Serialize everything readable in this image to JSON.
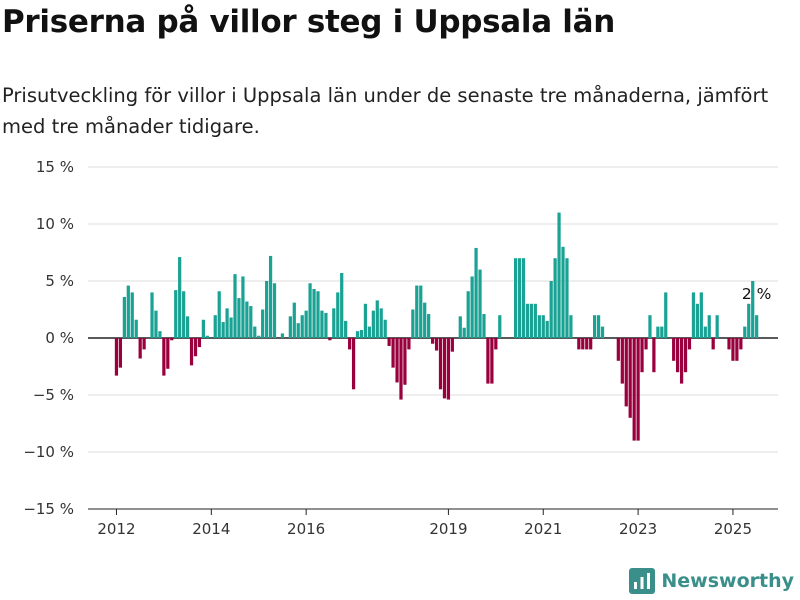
{
  "header": {
    "title": "Priserna på villor steg i Uppsala län",
    "subtitle": "Prisutveckling för villor i Uppsala län under de senaste tre månaderna, jämfört med tre månader tidigare."
  },
  "branding": {
    "name": "Newsworthy"
  },
  "colors": {
    "positive": "#1aa394",
    "negative": "#99003d",
    "logo": "#3a8f8a",
    "grid": "#dddddd"
  },
  "chart_data": {
    "type": "bar",
    "ylim": [
      -15,
      15
    ],
    "yticks": [
      15,
      10,
      5,
      0,
      -5,
      -10,
      -15
    ],
    "ytick_labels": [
      "15 %",
      "10 %",
      "5 %",
      "0 %",
      "−5 %",
      "−10 %",
      "−15 %"
    ],
    "xlim": [
      2011.4,
      2025.95
    ],
    "xticks": [
      2012,
      2014,
      2016,
      2019,
      2021,
      2023,
      2025
    ],
    "xtick_labels": [
      "2012",
      "2014",
      "2016",
      "2019",
      "2021",
      "2023",
      "2025"
    ],
    "grid": true,
    "x": [
      2012.0,
      2012.083,
      2012.167,
      2012.25,
      2012.333,
      2012.417,
      2012.5,
      2012.583,
      2012.667,
      2012.75,
      2012.833,
      2012.917,
      2013.0,
      2013.083,
      2013.167,
      2013.25,
      2013.333,
      2013.417,
      2013.5,
      2013.583,
      2013.667,
      2013.75,
      2013.833,
      2013.917,
      2014.0,
      2014.083,
      2014.167,
      2014.25,
      2014.333,
      2014.417,
      2014.5,
      2014.583,
      2014.667,
      2014.75,
      2014.833,
      2014.917,
      2015.0,
      2015.083,
      2015.167,
      2015.25,
      2015.333,
      2015.417,
      2015.5,
      2015.583,
      2015.667,
      2015.75,
      2015.833,
      2015.917,
      2016.0,
      2016.083,
      2016.167,
      2016.25,
      2016.333,
      2016.417,
      2016.5,
      2016.583,
      2016.667,
      2016.75,
      2016.833,
      2016.917,
      2017.0,
      2017.083,
      2017.167,
      2017.25,
      2017.333,
      2017.417,
      2017.5,
      2017.583,
      2017.667,
      2017.75,
      2017.833,
      2017.917,
      2018.0,
      2018.083,
      2018.167,
      2018.25,
      2018.333,
      2018.417,
      2018.5,
      2018.583,
      2018.667,
      2018.75,
      2018.833,
      2018.917,
      2019.0,
      2019.083,
      2019.167,
      2019.25,
      2019.333,
      2019.417,
      2019.5,
      2019.583,
      2019.667,
      2019.75,
      2019.833,
      2019.917,
      2020.0,
      2020.083,
      2020.167,
      2020.25,
      2020.333,
      2020.417,
      2020.5,
      2020.583,
      2020.667,
      2020.75,
      2020.833,
      2020.917,
      2021.0,
      2021.083,
      2021.167,
      2021.25,
      2021.333,
      2021.417,
      2021.5,
      2021.583,
      2021.667,
      2021.75,
      2021.833,
      2021.917,
      2022.0,
      2022.083,
      2022.167,
      2022.25,
      2022.333,
      2022.417,
      2022.5,
      2022.583,
      2022.667,
      2022.75,
      2022.833,
      2022.917,
      2023.0,
      2023.083,
      2023.167,
      2023.25,
      2023.333,
      2023.417,
      2023.5,
      2023.583,
      2023.667,
      2023.75,
      2023.833,
      2023.917,
      2024.0,
      2024.083,
      2024.167,
      2024.25,
      2024.333,
      2024.417,
      2024.5,
      2024.583,
      2024.667,
      2024.75,
      2024.833,
      2024.917,
      2025.0,
      2025.083,
      2025.167,
      2025.25,
      2025.333,
      2025.417,
      2025.5
    ],
    "values": [
      -3.3,
      -2.6,
      3.6,
      4.6,
      4.0,
      1.6,
      -1.8,
      -1.0,
      0,
      4.0,
      2.4,
      0.6,
      -3.3,
      -2.7,
      -0.2,
      4.2,
      7.1,
      4.1,
      1.9,
      -2.4,
      -1.6,
      -0.8,
      1.6,
      0.2,
      0,
      2.0,
      4.1,
      1.4,
      2.6,
      1.8,
      5.6,
      3.5,
      5.4,
      3.2,
      2.8,
      1.0,
      0.2,
      2.5,
      5.0,
      7.2,
      4.8,
      0,
      0.4,
      0,
      1.9,
      3.1,
      1.3,
      2.0,
      2.4,
      4.8,
      4.3,
      4.1,
      2.4,
      2.2,
      -0.2,
      2.6,
      4.0,
      5.7,
      1.5,
      -1.0,
      -4.5,
      0.6,
      0.7,
      3.0,
      1.0,
      2.4,
      3.3,
      2.6,
      1.6,
      -0.7,
      -2.6,
      -3.9,
      -5.4,
      -4.1,
      -1.0,
      2.5,
      4.6,
      4.6,
      3.1,
      2.1,
      -0.5,
      -1.1,
      -4.5,
      -5.3,
      -5.4,
      -1.2,
      0,
      1.9,
      0.9,
      4.1,
      5.4,
      7.9,
      6.0,
      2.1,
      -4.0,
      -4.0,
      -1.0,
      2.0,
      0,
      0,
      0,
      7.0,
      7.0,
      7.0,
      3.0,
      3.0,
      3.0,
      2.0,
      2.0,
      1.5,
      5.0,
      7.0,
      11.0,
      8.0,
      7.0,
      2.0,
      0,
      -1.0,
      -1.0,
      -1.0,
      -1.0,
      2.0,
      2.0,
      1.0,
      0,
      0,
      0,
      -2.0,
      -4.0,
      -6.0,
      -7.0,
      -9.0,
      -9.0,
      -3.0,
      -1.0,
      2.0,
      -3.0,
      1.0,
      1.0,
      4.0,
      0,
      -2.0,
      -3.0,
      -4.0,
      -3.0,
      -1.0,
      4.0,
      3.0,
      4.0,
      1.0,
      2.0,
      -1.0,
      2.0,
      0,
      0,
      -1.0,
      -2.0,
      -2.0,
      -1.0,
      1.0,
      3.0,
      5.0,
      2.0
    ],
    "annotation": {
      "text": "2 %"
    }
  }
}
